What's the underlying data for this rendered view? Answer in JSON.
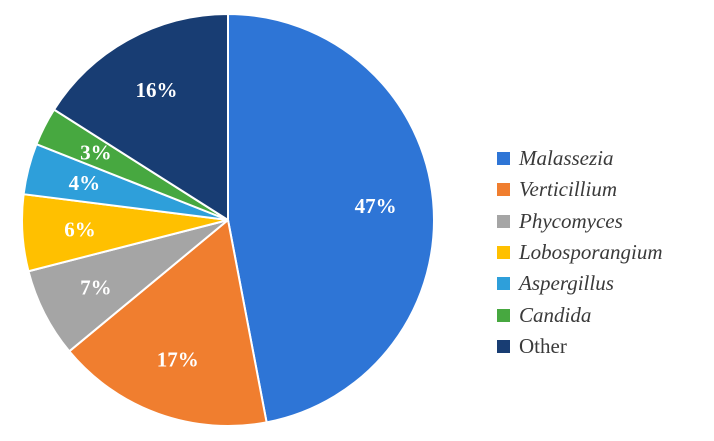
{
  "chart_data": {
    "type": "pie",
    "title": "",
    "start_angle_deg": 0,
    "direction": "clockwise",
    "legend_position": "right",
    "slices": [
      {
        "name": "Malassezia",
        "value": 47,
        "label": "47%",
        "color": "#2E75D6",
        "italic": true
      },
      {
        "name": "Verticillium",
        "value": 17,
        "label": "17%",
        "color": "#F07E2F",
        "italic": true
      },
      {
        "name": "Phycomyces",
        "value": 7,
        "label": "7%",
        "color": "#A5A5A5",
        "italic": true
      },
      {
        "name": "Lobosporangium",
        "value": 6,
        "label": "6%",
        "color": "#FFC000",
        "italic": true
      },
      {
        "name": "Aspergillus",
        "value": 4,
        "label": "4%",
        "color": "#2E9FDA",
        "italic": true
      },
      {
        "name": "Candida",
        "value": 3,
        "label": "3%",
        "color": "#47A840",
        "italic": true
      },
      {
        "name": "Other",
        "value": 16,
        "label": "16%",
        "color": "#183D73",
        "italic": false
      }
    ]
  }
}
